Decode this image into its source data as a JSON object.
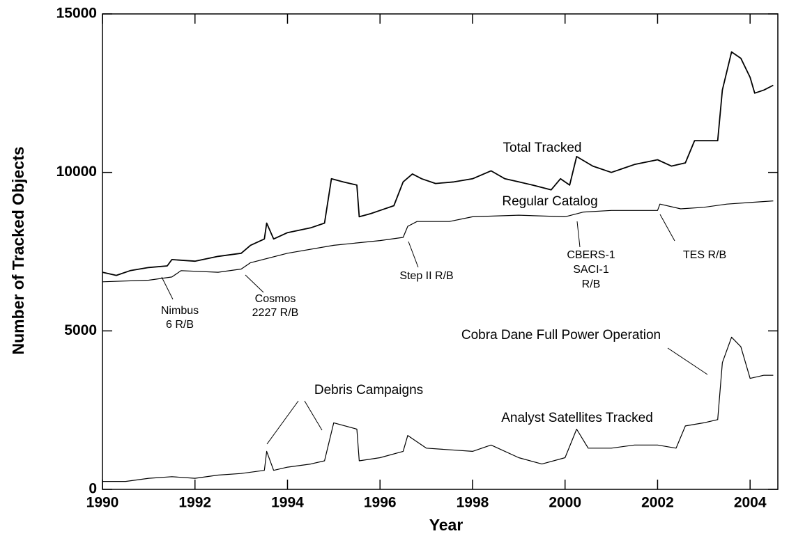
{
  "chart_data": {
    "type": "line",
    "xlabel": "Year",
    "ylabel": "Number of Tracked Objects",
    "xlim": [
      1990,
      2004.6
    ],
    "ylim": [
      0,
      15000
    ],
    "xticks": [
      1990,
      1992,
      1994,
      1996,
      1998,
      2000,
      2002,
      2004
    ],
    "yticks": [
      0,
      5000,
      10000,
      15000
    ],
    "series": [
      {
        "name": "Total Tracked",
        "color": "#000000",
        "x": [
          1990,
          1990.3,
          1990.6,
          1991,
          1991.4,
          1991.5,
          1992,
          1992.5,
          1993,
          1993.2,
          1993.5,
          1993.55,
          1993.7,
          1994,
          1994.5,
          1994.8,
          1994.95,
          1995.2,
          1995.5,
          1995.55,
          1995.8,
          1996,
          1996.3,
          1996.5,
          1996.7,
          1996.9,
          1997.2,
          1997.6,
          1998,
          1998.4,
          1998.7,
          1999,
          1999.3,
          1999.7,
          1999.9,
          2000.1,
          2000.25,
          2000.6,
          2001,
          2001.5,
          2002,
          2002.3,
          2002.6,
          2002.8,
          2003,
          2003.3,
          2003.4,
          2003.6,
          2003.8,
          2004,
          2004.1,
          2004.3,
          2004.5
        ],
        "values": [
          6850,
          6750,
          6900,
          7000,
          7050,
          7250,
          7200,
          7350,
          7450,
          7700,
          7900,
          8400,
          7900,
          8100,
          8250,
          8400,
          9800,
          9700,
          9600,
          8600,
          8700,
          8800,
          8950,
          9700,
          9950,
          9800,
          9650,
          9700,
          9800,
          10050,
          9800,
          9700,
          9600,
          9450,
          9800,
          9600,
          10500,
          10200,
          10000,
          10250,
          10400,
          10200,
          10300,
          11000,
          11000,
          11000,
          12600,
          13800,
          13600,
          13000,
          12500,
          12600,
          12750
        ]
      },
      {
        "name": "Regular Catalog",
        "color": "#000000",
        "x": [
          1990,
          1991,
          1991.5,
          1991.7,
          1992.5,
          1993,
          1993.2,
          1994,
          1995,
          1996,
          1996.5,
          1996.6,
          1996.8,
          1997.5,
          1998,
          1999,
          2000,
          2000.4,
          2001,
          2002,
          2002.05,
          2002.5,
          2003,
          2003.5,
          2004,
          2004.5
        ],
        "values": [
          6550,
          6600,
          6700,
          6900,
          6850,
          6950,
          7150,
          7450,
          7700,
          7850,
          7950,
          8300,
          8450,
          8450,
          8600,
          8650,
          8600,
          8750,
          8800,
          8800,
          9000,
          8850,
          8900,
          9000,
          9050,
          9100
        ]
      },
      {
        "name": "Analyst Satellites Tracked",
        "color": "#000000",
        "x": [
          1990,
          1990.5,
          1991,
          1991.5,
          1992,
          1992.5,
          1993,
          1993.5,
          1993.55,
          1993.7,
          1994,
          1994.5,
          1994.8,
          1995,
          1995.5,
          1995.55,
          1996,
          1996.5,
          1996.6,
          1997,
          1998,
          1998.4,
          1999,
          1999.5,
          2000,
          2000.25,
          2000.5,
          2001,
          2001.5,
          2002,
          2002.4,
          2002.6,
          2003,
          2003.3,
          2003.4,
          2003.6,
          2003.8,
          2004,
          2004.3,
          2004.5
        ],
        "values": [
          250,
          250,
          350,
          400,
          350,
          450,
          500,
          600,
          1200,
          600,
          700,
          800,
          900,
          2100,
          1900,
          900,
          1000,
          1200,
          1700,
          1300,
          1200,
          1400,
          1000,
          800,
          1000,
          1900,
          1300,
          1300,
          1400,
          1400,
          1300,
          2000,
          2100,
          2200,
          4000,
          4800,
          4500,
          3500,
          3600,
          3600
        ]
      }
    ],
    "annotations": [
      {
        "text": [
          "Nimbus",
          "6 R/B"
        ]
      },
      {
        "text": [
          "Cosmos",
          "2227 R/B"
        ]
      },
      {
        "text": [
          "Step II R/B"
        ]
      },
      {
        "text": [
          "CBERS-1",
          "SACI-1",
          "R/B"
        ]
      },
      {
        "text": [
          "TES R/B"
        ]
      },
      {
        "text": [
          "Debris Campaigns"
        ]
      },
      {
        "text": [
          "Cobra Dane Full Power Operation"
        ]
      }
    ]
  }
}
